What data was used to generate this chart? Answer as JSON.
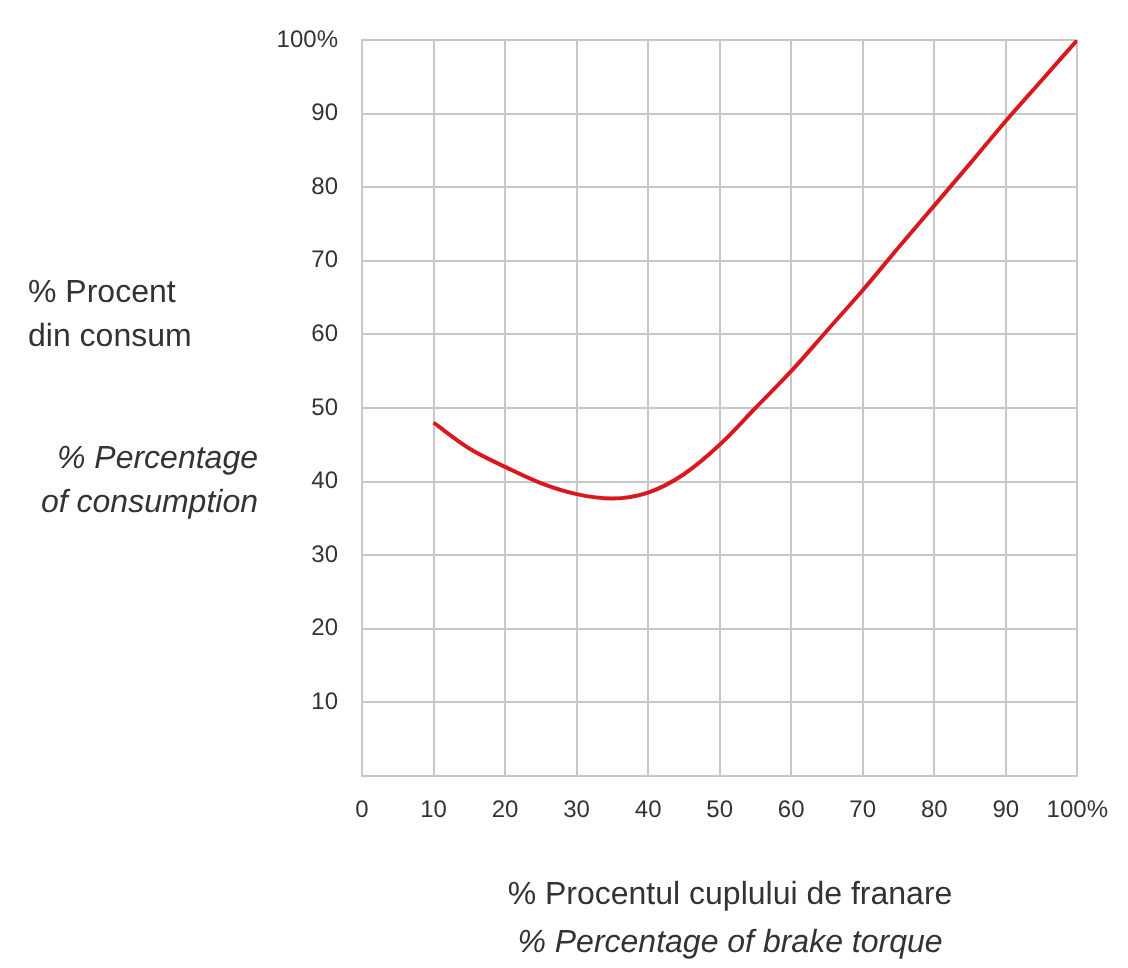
{
  "chart_data": {
    "type": "line",
    "xlabel": "% Procentul cuplului de franare",
    "ylabel": "% Procent din consum",
    "annotations": [
      "% Percentage of consumption",
      "% Percentage of brake torque"
    ],
    "series": [
      {
        "color": "#d7191f",
        "x": [
          10,
          15,
          20,
          25,
          30,
          35,
          40,
          45,
          50,
          55,
          60,
          65,
          70,
          75,
          80,
          85,
          90,
          95,
          100
        ],
        "values": [
          48,
          44.5,
          42,
          39.8,
          38.3,
          37.7,
          38.5,
          41,
          45,
          50,
          55,
          60.5,
          66,
          71.8,
          77.5,
          83.2,
          89,
          94.5,
          100
        ]
      }
    ],
    "xlim": [
      0,
      100
    ],
    "xticks": [
      0,
      10,
      20,
      30,
      40,
      50,
      60,
      70,
      80,
      90,
      {
        "value": 100,
        "label": "100%"
      }
    ],
    "ylim": [
      0,
      100
    ],
    "yticks": [
      10,
      20,
      30,
      40,
      50,
      60,
      70,
      80,
      90,
      {
        "value": 100,
        "label": "100%"
      }
    ],
    "grid": true,
    "legend": false,
    "marker": "none",
    "line_style": "solid"
  }
}
